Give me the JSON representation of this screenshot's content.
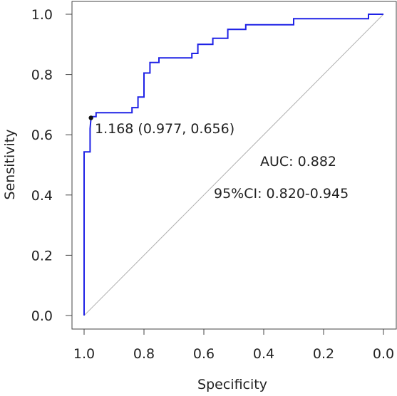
{
  "chart_data": {
    "type": "line",
    "title": "",
    "xlabel": "Specificity",
    "ylabel": "Sensitivity",
    "xlim": [
      1.0,
      0.0
    ],
    "ylim": [
      0.0,
      1.0
    ],
    "x_reversed": true,
    "grid": false,
    "xticks": [
      "1.0",
      "0.8",
      "0.6",
      "0.4",
      "0.2",
      "0.0"
    ],
    "yticks": [
      "0.0",
      "0.2",
      "0.4",
      "0.6",
      "0.8",
      "1.0"
    ],
    "series": [
      {
        "color": "#1f22e6",
        "specificity": [
          1.0,
          1.0,
          0.98,
          0.98,
          0.977,
          0.977,
          0.96,
          0.96,
          0.84,
          0.84,
          0.82,
          0.82,
          0.8,
          0.8,
          0.78,
          0.78,
          0.75,
          0.75,
          0.64,
          0.64,
          0.62,
          0.62,
          0.57,
          0.57,
          0.52,
          0.52,
          0.46,
          0.46,
          0.3,
          0.3,
          0.05,
          0.05,
          0.0
        ],
        "sensitivity": [
          0.0,
          0.543,
          0.543,
          0.62,
          0.656,
          0.66,
          0.66,
          0.673,
          0.673,
          0.69,
          0.69,
          0.725,
          0.725,
          0.805,
          0.805,
          0.84,
          0.84,
          0.855,
          0.855,
          0.87,
          0.87,
          0.9,
          0.9,
          0.92,
          0.92,
          0.95,
          0.95,
          0.965,
          0.965,
          0.985,
          0.985,
          1.0,
          1.0
        ]
      }
    ],
    "reference_line": {
      "color": "#b0b0b0",
      "from": [
        1.0,
        0.0
      ],
      "to": [
        0.0,
        1.0
      ]
    },
    "threshold_point": {
      "specificity": 0.977,
      "sensitivity": 0.656,
      "label": "1.168 (0.977, 0.656)"
    },
    "annotations": [
      "AUC: 0.882",
      "95%CI: 0.820-0.945"
    ]
  }
}
